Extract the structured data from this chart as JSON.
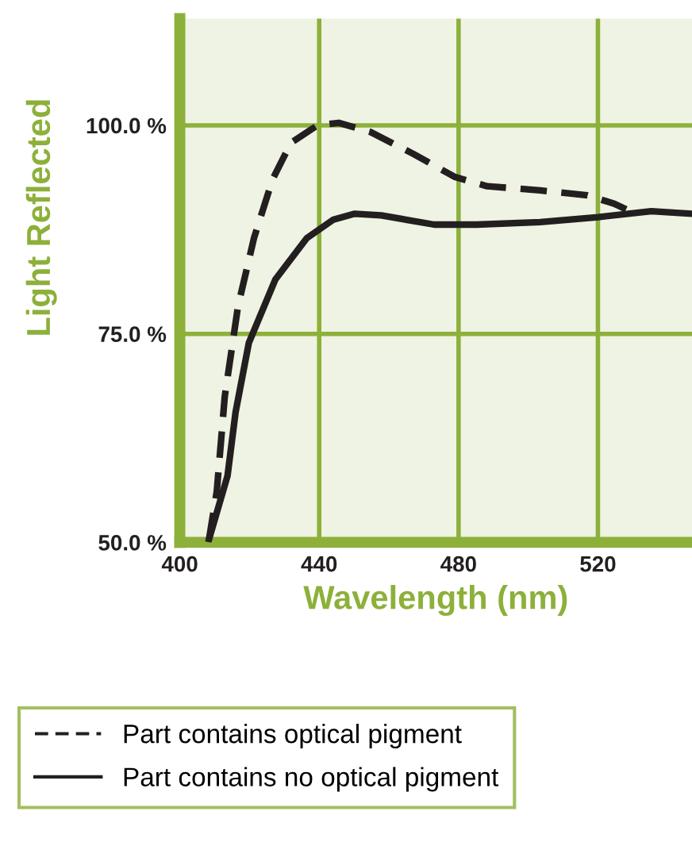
{
  "chart_data": {
    "type": "line",
    "xlabel": "Wavelength (nm)",
    "ylabel": "Light Reflected",
    "xlim": [
      400,
      547
    ],
    "xticks": [
      400,
      440,
      480,
      520
    ],
    "ylim": [
      50,
      112.8
    ],
    "yticks": [
      {
        "value": 50,
        "label": "50.0 %"
      },
      {
        "value": 75,
        "label": "75.0 %"
      },
      {
        "value": 100,
        "label": "100.0 %"
      }
    ],
    "grid": true,
    "legend": "bottom",
    "series": [
      {
        "name": "Part contains optical pigment",
        "color": "#231f20",
        "line_style": "dashed",
        "x": [
          408.4,
          410.6,
          412.9,
          416.7,
          421.3,
          426.6,
          431.9,
          439.5,
          445.6,
          454.7,
          466.9,
          479,
          488.2,
          503.4,
          517,
          524.7,
          529.3
        ],
        "values": [
          50.4,
          56.1,
          67.5,
          78.3,
          86.5,
          93.5,
          97.9,
          100,
          100.3,
          99.2,
          96.6,
          93.8,
          92.7,
          92.2,
          91.6,
          90.6,
          89.7
        ]
      },
      {
        "name": "Part contains no optical pigment",
        "color": "#231f20",
        "line_style": "solid",
        "x": [
          408.4,
          413.7,
          416,
          419.8,
          427.4,
          436.5,
          444.1,
          450.2,
          457.8,
          473,
          485.2,
          503.4,
          520.1,
          535.3,
          547
        ],
        "values": [
          50.4,
          58,
          65.6,
          73.9,
          81.5,
          86.5,
          88.7,
          89.4,
          89.2,
          88.1,
          88.1,
          88.4,
          89,
          89.7,
          89.4
        ]
      }
    ]
  }
}
